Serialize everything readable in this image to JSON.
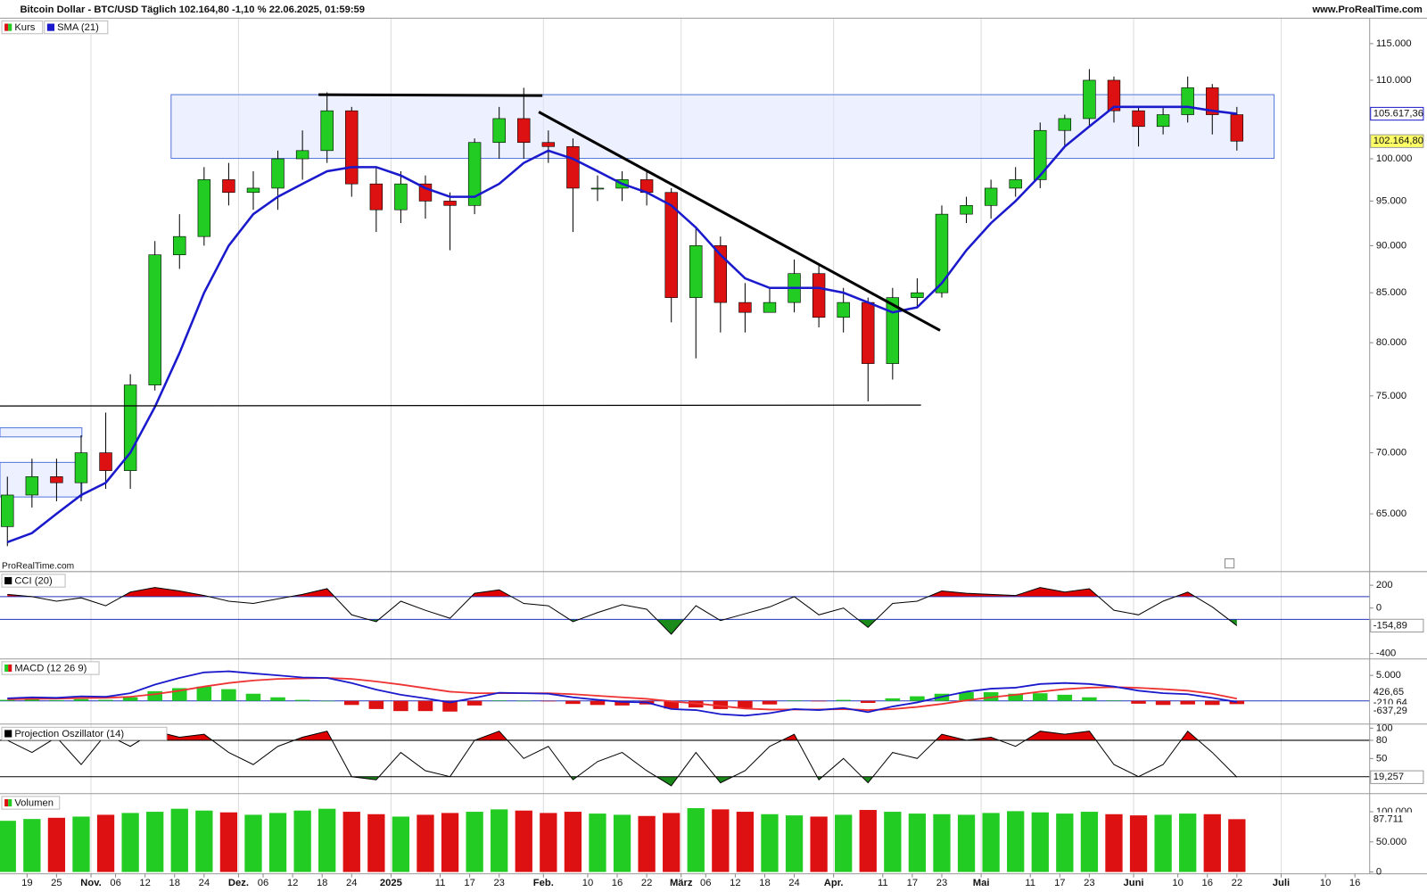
{
  "chart_data": {
    "type": "candlestick",
    "title": "Bitcoin Dollar - BTC/USD Täglich 102.164,80 -1,10 % 22.06.2025, 01:59:59",
    "source": "www.ProRealTime.com",
    "watermark": "ProRealTime.com",
    "log_scale": true,
    "x": [
      14,
      19,
      24,
      29,
      34,
      39,
      44,
      49,
      54,
      59,
      64,
      69,
      74,
      79,
      84,
      89,
      94,
      99,
      104,
      109,
      114,
      119,
      124,
      129,
      134,
      139,
      144,
      149,
      154,
      159,
      164,
      169,
      174,
      179,
      184,
      189,
      194,
      199,
      204,
      209,
      214,
      219,
      224,
      229,
      234,
      239,
      244,
      249,
      254,
      259,
      264
    ],
    "xlim": [
      12.5,
      291
    ],
    "xticks": [
      {
        "value": 18,
        "label": "19"
      },
      {
        "value": 24,
        "label": "25"
      },
      {
        "value": 31,
        "label": "Nov."
      },
      {
        "value": 36,
        "label": "06"
      },
      {
        "value": 42,
        "label": "12"
      },
      {
        "value": 48,
        "label": "18"
      },
      {
        "value": 54,
        "label": "24"
      },
      {
        "value": 61,
        "label": "Dez."
      },
      {
        "value": 66,
        "label": "06"
      },
      {
        "value": 72,
        "label": "12"
      },
      {
        "value": 78,
        "label": "18"
      },
      {
        "value": 84,
        "label": "24"
      },
      {
        "value": 92,
        "label": "2025"
      },
      {
        "value": 102,
        "label": "11"
      },
      {
        "value": 108,
        "label": "17"
      },
      {
        "value": 114,
        "label": "23"
      },
      {
        "value": 123,
        "label": "Feb."
      },
      {
        "value": 132,
        "label": "10"
      },
      {
        "value": 138,
        "label": "16"
      },
      {
        "value": 144,
        "label": "22"
      },
      {
        "value": 151,
        "label": "März"
      },
      {
        "value": 156,
        "label": "06"
      },
      {
        "value": 162,
        "label": "12"
      },
      {
        "value": 168,
        "label": "18"
      },
      {
        "value": 174,
        "label": "24"
      },
      {
        "value": 182,
        "label": "Apr."
      },
      {
        "value": 192,
        "label": "11"
      },
      {
        "value": 198,
        "label": "17"
      },
      {
        "value": 204,
        "label": "23"
      },
      {
        "value": 212,
        "label": "Mai"
      },
      {
        "value": 222,
        "label": "11"
      },
      {
        "value": 228,
        "label": "17"
      },
      {
        "value": 234,
        "label": "23"
      },
      {
        "value": 243,
        "label": "Juni"
      },
      {
        "value": 252,
        "label": "10"
      },
      {
        "value": 258,
        "label": "16"
      },
      {
        "value": 264,
        "label": "22"
      },
      {
        "value": 273,
        "label": "Juli"
      },
      {
        "value": 282,
        "label": "10"
      },
      {
        "value": 288,
        "label": "16"
      }
    ],
    "xgrid": [
      31,
      61,
      92,
      123,
      151,
      182,
      212,
      243,
      273
    ],
    "ylim": [
      60600,
      118600
    ],
    "yticks": [
      {
        "value": 65000,
        "label": "65.000"
      },
      {
        "value": 70000,
        "label": "70.000"
      },
      {
        "value": 75000,
        "label": "75.000"
      },
      {
        "value": 80000,
        "label": "80.000"
      },
      {
        "value": 85000,
        "label": "85.000"
      },
      {
        "value": 90000,
        "label": "90.000"
      },
      {
        "value": 95000,
        "label": "95.000"
      },
      {
        "value": 100000,
        "label": "100.000"
      },
      {
        "value": 110000,
        "label": "110.000"
      },
      {
        "value": 115000,
        "label": "115.000"
      }
    ],
    "series": [
      {
        "name": "Kurs",
        "type": "candlestick",
        "up_color": "#22cc22",
        "down_color": "#dd1111",
        "last_label": "102.164,80",
        "open": [
          64000,
          66500,
          68000,
          67500,
          70000,
          68500,
          76000,
          89000,
          91000,
          97500,
          96000,
          96500,
          100000,
          101000,
          106000,
          97000,
          94000,
          97000,
          95000,
          94500,
          102000,
          105000,
          102000,
          101500,
          96500,
          96500,
          97500,
          96000,
          84500,
          90000,
          84000,
          83000,
          84000,
          87000,
          82500,
          84000,
          78000,
          84500,
          85000,
          93500,
          94500,
          96500,
          97500,
          103500,
          105000,
          110000,
          106000,
          104000,
          105500,
          109000,
          105500
        ],
        "high": [
          68000,
          69500,
          69500,
          71500,
          73500,
          77000,
          90500,
          93500,
          99000,
          99500,
          98500,
          101000,
          103500,
          108400,
          106500,
          99000,
          98500,
          98000,
          96000,
          102500,
          106500,
          109000,
          103500,
          102500,
          98000,
          98500,
          98500,
          96500,
          92000,
          91000,
          86000,
          85500,
          88500,
          88000,
          85500,
          84500,
          85500,
          86500,
          94500,
          95500,
          97500,
          99000,
          104500,
          105500,
          111500,
          110500,
          106500,
          106500,
          110500,
          109500,
          106500
        ],
        "low": [
          62500,
          65500,
          66000,
          66000,
          67000,
          67000,
          75500,
          87500,
          90000,
          94500,
          94000,
          94000,
          97500,
          99500,
          95500,
          91500,
          92500,
          93000,
          89500,
          93500,
          100000,
          100000,
          99500,
          91500,
          95000,
          95000,
          94500,
          82000,
          78500,
          81000,
          81000,
          83000,
          83000,
          81500,
          81000,
          74500,
          76500,
          83500,
          84500,
          92500,
          93000,
          95500,
          96500,
          101500,
          104000,
          104500,
          101500,
          103000,
          104500,
          103000,
          101000
        ],
        "close": [
          66500,
          68000,
          67500,
          70000,
          68500,
          76000,
          89000,
          91000,
          97500,
          96000,
          96500,
          100000,
          101000,
          106000,
          97000,
          94000,
          97000,
          95000,
          94500,
          102000,
          105000,
          102000,
          101500,
          96500,
          96500,
          97500,
          96000,
          84500,
          90000,
          84000,
          83000,
          84000,
          87000,
          82500,
          84000,
          78000,
          84500,
          85000,
          93500,
          94500,
          96500,
          97500,
          103500,
          105000,
          110000,
          106000,
          104000,
          105500,
          109000,
          105500,
          102164.8
        ]
      },
      {
        "name": "SMA (21)",
        "type": "line",
        "color": "#1a1acc",
        "last_label": "105.617,36",
        "values": [
          62800,
          63500,
          65000,
          66500,
          67500,
          70000,
          74000,
          79000,
          85000,
          90000,
          93500,
          95500,
          97000,
          98500,
          99000,
          99000,
          98000,
          96500,
          95500,
          95500,
          97000,
          99500,
          101000,
          100000,
          98500,
          97000,
          96000,
          94500,
          92000,
          89000,
          86500,
          85500,
          85500,
          85500,
          85000,
          84000,
          83000,
          83500,
          86000,
          89500,
          92500,
          95000,
          98000,
          101500,
          104000,
          106500,
          106500,
          106500,
          106500,
          106000,
          105617.36
        ]
      }
    ],
    "panels": [
      {
        "type": "line",
        "name": "CCI (20)",
        "color": "#000000",
        "level_color": "#2233bb",
        "above_color": "#e00000",
        "below_color": "#1a8a1a",
        "ylim": [
          -432,
          320
        ],
        "yticks": [
          200,
          0,
          -400
        ],
        "levels": [
          100,
          -100
        ],
        "last_label": "-154,89",
        "values": [
          120,
          100,
          60,
          90,
          20,
          140,
          180,
          150,
          110,
          60,
          40,
          80,
          120,
          170,
          -60,
          -120,
          60,
          -20,
          -90,
          130,
          160,
          40,
          20,
          -120,
          -40,
          30,
          -10,
          -230,
          20,
          -110,
          -50,
          10,
          100,
          -60,
          0,
          -170,
          40,
          60,
          150,
          130,
          120,
          110,
          180,
          140,
          170,
          -20,
          -60,
          60,
          140,
          10,
          -154.89
        ]
      },
      {
        "type": "macd",
        "name": "MACD (12 26 9)",
        "macd_color": "#1a1acc",
        "signal_color": "#ee3333",
        "up_color": "#22cc22",
        "down_color": "#dd1111",
        "ylim": [
          -4460,
          7860
        ],
        "yticks": [
          {
            "value": 5000,
            "label": "5.000"
          }
        ],
        "macd": [
          500,
          700,
          600,
          900,
          800,
          1500,
          3200,
          4500,
          5600,
          5800,
          5400,
          5000,
          4600,
          4500,
          3500,
          2200,
          1200,
          500,
          -300,
          600,
          1600,
          1500,
          1400,
          700,
          200,
          -200,
          -300,
          -1600,
          -1800,
          -2600,
          -2900,
          -2400,
          -1600,
          -1800,
          -1400,
          -2200,
          -1100,
          -300,
          800,
          1800,
          2400,
          2600,
          3300,
          3500,
          3300,
          2800,
          2000,
          1500,
          1300,
          600,
          -210.64
        ],
        "signal": [
          300,
          400,
          450,
          550,
          600,
          800,
          1300,
          2000,
          2800,
          3500,
          4000,
          4300,
          4400,
          4500,
          4300,
          3800,
          3200,
          2500,
          1800,
          1500,
          1500,
          1500,
          1500,
          1300,
          1000,
          700,
          400,
          -100,
          -500,
          -1000,
          -1500,
          -1700,
          -1700,
          -1700,
          -1600,
          -1800,
          -1600,
          -1200,
          -600,
          100,
          700,
          1200,
          1800,
          2300,
          2600,
          2700,
          2550,
          2300,
          2000,
          1400,
          426.65
        ],
        "histogram": [
          200,
          300,
          150,
          350,
          200,
          700,
          1900,
          2500,
          2800,
          2300,
          1400,
          700,
          200,
          0,
          -800,
          -1600,
          -2000,
          -2000,
          -2100,
          -900,
          100,
          0,
          -100,
          -600,
          -800,
          -900,
          -700,
          -1500,
          -1300,
          -1600,
          -1400,
          -700,
          100,
          -100,
          200,
          -400,
          500,
          900,
          1400,
          1700,
          1700,
          1400,
          1500,
          1200,
          700,
          100,
          -550,
          -800,
          -700,
          -800,
          -637.29
        ],
        "signal_label": "426,65",
        "macd_label": "-210,64",
        "histogram_label": "-637,29"
      },
      {
        "type": "line",
        "name": "Projection Oszillator (14)",
        "color": "#000000",
        "level_color": "#000000",
        "above_color": "#e00000",
        "below_color": "#1a8a1a",
        "ylim": [
          -5,
          106
        ],
        "yticks": [
          100,
          80,
          50,
          20
        ],
        "levels": [
          80,
          20
        ],
        "last_label": "19,257",
        "values": [
          80,
          60,
          85,
          40,
          90,
          70,
          95,
          85,
          90,
          60,
          40,
          70,
          85,
          95,
          20,
          15,
          60,
          30,
          20,
          80,
          95,
          50,
          70,
          15,
          45,
          60,
          30,
          5,
          60,
          10,
          30,
          70,
          90,
          15,
          50,
          10,
          60,
          50,
          90,
          80,
          85,
          70,
          95,
          90,
          95,
          40,
          20,
          40,
          95,
          60,
          19.257
        ]
      },
      {
        "type": "bar",
        "name": "Volumen",
        "ylim": [
          0,
          127000
        ],
        "yticks": [
          {
            "value": 0,
            "label": "0"
          },
          {
            "value": 50000,
            "label": "50.000"
          },
          {
            "value": 100000,
            "label": "100.000"
          }
        ],
        "last_label": "87.711",
        "values": [
          85000,
          88000,
          90000,
          92000,
          95000,
          98000,
          100000,
          105000,
          102000,
          99000,
          95000,
          98000,
          102000,
          105000,
          100000,
          96000,
          92000,
          95000,
          98000,
          100000,
          104000,
          102000,
          98000,
          100000,
          97000,
          95000,
          93000,
          98000,
          106000,
          104000,
          100000,
          96000,
          94000,
          92000,
          95000,
          103000,
          100000,
          97000,
          96000,
          95000,
          98000,
          101000,
          99000,
          97000,
          100000,
          96000,
          94000,
          95000,
          97000,
          96000,
          87711
        ]
      }
    ]
  }
}
